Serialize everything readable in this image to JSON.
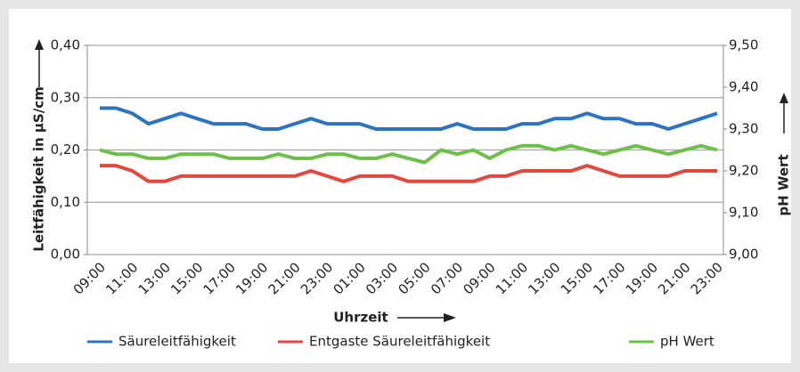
{
  "chart_data": {
    "type": "line",
    "x_label": "Uhrzeit",
    "y_label": "Leitfähigkeit in µS/cm",
    "y2_label": "pH Wert",
    "categories": [
      "09:00",
      null,
      "11:00",
      null,
      "13:00",
      null,
      "15:00",
      null,
      "17:00",
      null,
      "19:00",
      null,
      "21:00",
      null,
      "23:00",
      null,
      "01:00",
      null,
      "03:00",
      null,
      "05:00",
      null,
      "07:00",
      null,
      "09:00",
      null,
      "11:00",
      null,
      "13:00",
      null,
      "15:00",
      null,
      "17:00",
      null,
      "19:00",
      null,
      "21:00",
      null,
      "23:00"
    ],
    "ylim": [
      0,
      0.4
    ],
    "yticks": [
      {
        "value": 0,
        "label": "0,00"
      },
      {
        "value": 0.1,
        "label": "0,10"
      },
      {
        "value": 0.2,
        "label": "0,20"
      },
      {
        "value": 0.3,
        "label": "0,30"
      },
      {
        "value": 0.4,
        "label": "0,40"
      }
    ],
    "y2lim": [
      9,
      9.5
    ],
    "y2ticks": [
      {
        "value": 9,
        "label": "9,00"
      },
      {
        "value": 9.1,
        "label": "9,10"
      },
      {
        "value": 9.2,
        "label": "9,20"
      },
      {
        "value": 9.3,
        "label": "9,30"
      },
      {
        "value": 9.4,
        "label": "9,40"
      },
      {
        "value": 9.5,
        "label": "9,50"
      }
    ],
    "grid": true,
    "series": [
      {
        "name": "Säureleitfähigkeit",
        "color": "#2c74c2",
        "values": [
          0.28,
          0.28,
          0.27,
          0.25,
          0.26,
          0.27,
          0.26,
          0.25,
          0.25,
          0.25,
          0.24,
          0.24,
          0.25,
          0.26,
          0.25,
          0.25,
          0.25,
          0.24,
          0.24,
          0.24,
          0.24,
          0.24,
          0.25,
          0.24,
          0.24,
          0.24,
          0.25,
          0.25,
          0.26,
          0.26,
          0.27,
          0.26,
          0.26,
          0.25,
          0.25,
          0.24,
          0.25,
          0.26,
          0.27
        ]
      },
      {
        "name": "Entgaste Säureleitfähigkeit",
        "color": "#e2483d",
        "values": [
          0.17,
          0.17,
          0.16,
          0.14,
          0.14,
          0.15,
          0.15,
          0.15,
          0.15,
          0.15,
          0.15,
          0.15,
          0.15,
          0.16,
          0.15,
          0.14,
          0.15,
          0.15,
          0.15,
          0.14,
          0.14,
          0.14,
          0.14,
          0.14,
          0.15,
          0.15,
          0.16,
          0.16,
          0.16,
          0.16,
          0.17,
          0.16,
          0.15,
          0.15,
          0.15,
          0.15,
          0.16,
          0.16,
          0.16
        ]
      },
      {
        "name": "pH Wert",
        "color": "#6cbf47",
        "axis": "y2",
        "values": [
          9.25,
          9.24,
          9.24,
          9.23,
          9.23,
          9.24,
          9.24,
          9.24,
          9.23,
          9.23,
          9.23,
          9.24,
          9.23,
          9.23,
          9.24,
          9.24,
          9.23,
          9.23,
          9.24,
          9.23,
          9.22,
          9.25,
          9.24,
          9.25,
          9.23,
          9.25,
          9.26,
          9.26,
          9.25,
          9.26,
          9.25,
          9.24,
          9.25,
          9.26,
          9.25,
          9.24,
          9.25,
          9.26,
          9.25
        ]
      }
    ]
  }
}
